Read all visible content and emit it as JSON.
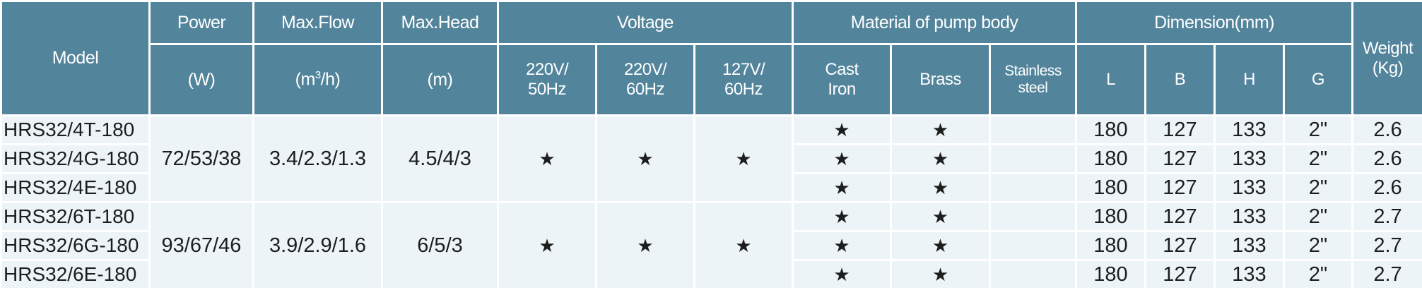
{
  "header": {
    "model": "Model",
    "power": "Power",
    "power_unit": "(W)",
    "flow": "Max.Flow",
    "flow_unit_pre": "(m",
    "flow_unit_sup": "3",
    "flow_unit_post": "/h)",
    "head": "Max.Head",
    "head_unit": "(m)",
    "voltage": "Voltage",
    "voltages": [
      "220V/ 50Hz",
      "220V/ 60Hz",
      "127V/ 60Hz"
    ],
    "material": "Material of pump body",
    "materials": [
      "Cast Iron",
      "Brass",
      "Stainless steel"
    ],
    "dimension": "Dimension(mm)",
    "dims": [
      "L",
      "B",
      "H",
      "G"
    ],
    "weight": "Weight (Kg)"
  },
  "groups": [
    {
      "power": "72/53/38",
      "flow": "3.4/2.3/1.3",
      "head": "4.5/4/3",
      "voltage_marks": [
        "★",
        "★",
        "★"
      ]
    },
    {
      "power": "93/67/46",
      "flow": "3.9/2.9/1.6",
      "head": "6/5/3",
      "voltage_marks": [
        "★",
        "★",
        "★"
      ]
    }
  ],
  "rows": [
    {
      "model": "HRS32/4T-180",
      "cast_iron": "★",
      "brass": "★",
      "stainless": "",
      "L": "180",
      "B": "127",
      "H": "133",
      "G": "2\"",
      "weight": "2.6"
    },
    {
      "model": "HRS32/4G-180",
      "cast_iron": "★",
      "brass": "★",
      "stainless": "",
      "L": "180",
      "B": "127",
      "H": "133",
      "G": "2\"",
      "weight": "2.6"
    },
    {
      "model": "HRS32/4E-180",
      "cast_iron": "★",
      "brass": "★",
      "stainless": "",
      "L": "180",
      "B": "127",
      "H": "133",
      "G": "2\"",
      "weight": "2.6"
    },
    {
      "model": "HRS32/6T-180",
      "cast_iron": "★",
      "brass": "★",
      "stainless": "",
      "L": "180",
      "B": "127",
      "H": "133",
      "G": "2\"",
      "weight": "2.7"
    },
    {
      "model": "HRS32/6G-180",
      "cast_iron": "★",
      "brass": "★",
      "stainless": "",
      "L": "180",
      "B": "127",
      "H": "133",
      "G": "2\"",
      "weight": "2.7"
    },
    {
      "model": "HRS32/6E-180",
      "cast_iron": "★",
      "brass": "★",
      "stainless": "",
      "L": "180",
      "B": "127",
      "H": "133",
      "G": "2\"",
      "weight": "2.7"
    }
  ],
  "colors": {
    "header_bg": "#52849b",
    "body_bg": "#ecf4f8"
  }
}
